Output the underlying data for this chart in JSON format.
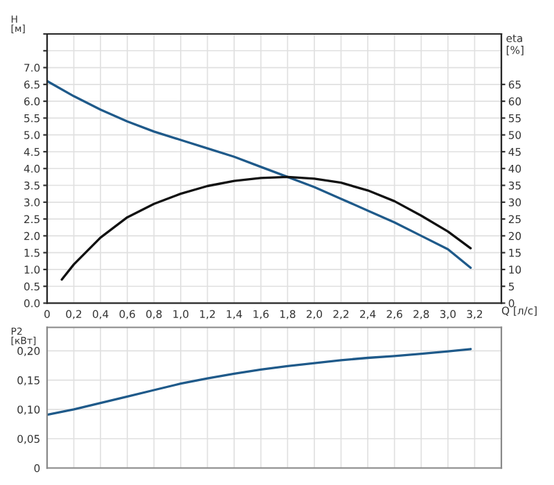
{
  "chart_data": [
    {
      "type": "line",
      "ylabel": "H\n[м]",
      "y2label": "eta\n[%]",
      "xlabel": "Q [л/с]",
      "grid": true,
      "legend": false,
      "xlim": [
        0,
        3.4
      ],
      "xticks": [
        {
          "value": 0,
          "label": "0"
        },
        {
          "value": 0.2,
          "label": "0,2"
        },
        {
          "value": 0.4,
          "label": "0,4"
        },
        {
          "value": 0.6,
          "label": "0,6"
        },
        {
          "value": 0.8,
          "label": "0,8"
        },
        {
          "value": 1.0,
          "label": "1,0"
        },
        {
          "value": 1.2,
          "label": "1,2"
        },
        {
          "value": 1.4,
          "label": "1,4"
        },
        {
          "value": 1.6,
          "label": "1,6"
        },
        {
          "value": 1.8,
          "label": "1,8"
        },
        {
          "value": 2.0,
          "label": "2,0"
        },
        {
          "value": 2.2,
          "label": "2,2"
        },
        {
          "value": 2.4,
          "label": "2,4"
        },
        {
          "value": 2.6,
          "label": "2,6"
        },
        {
          "value": 2.8,
          "label": "2,8"
        },
        {
          "value": 3.0,
          "label": "3,0"
        },
        {
          "value": 3.2,
          "label": "3,2"
        },
        {
          "value": 3.4,
          "label": null
        }
      ],
      "ylim": [
        0,
        8
      ],
      "yticks": [
        {
          "value": 0,
          "label": "0.0"
        },
        {
          "value": 0.5,
          "label": "0.5"
        },
        {
          "value": 1,
          "label": "1.0"
        },
        {
          "value": 1.5,
          "label": "1.5"
        },
        {
          "value": 2,
          "label": "2.0"
        },
        {
          "value": 2.5,
          "label": "2.5"
        },
        {
          "value": 3,
          "label": "3.0"
        },
        {
          "value": 3.5,
          "label": "3.5"
        },
        {
          "value": 4,
          "label": "4.0"
        },
        {
          "value": 4.5,
          "label": "4.5"
        },
        {
          "value": 5,
          "label": "5.0"
        },
        {
          "value": 5.5,
          "label": "5.5"
        },
        {
          "value": 6,
          "label": "6.0"
        },
        {
          "value": 6.5,
          "label": "6.5"
        },
        {
          "value": 7,
          "label": "7.0"
        },
        {
          "value": 7.5,
          "label": null
        },
        {
          "value": 8,
          "label": null
        }
      ],
      "y2lim": [
        0,
        80
      ],
      "y2ticks": [
        0,
        5,
        10,
        15,
        20,
        25,
        30,
        35,
        40,
        45,
        50,
        55,
        60,
        65
      ],
      "series": [
        {
          "color": "#1f5a8a",
          "x": [
            0,
            0.2,
            0.4,
            0.6,
            0.8,
            1.0,
            1.2,
            1.4,
            1.6,
            1.8,
            2.0,
            2.2,
            2.4,
            2.6,
            2.8,
            3.0,
            3.17
          ],
          "values": [
            6.6,
            6.15,
            5.75,
            5.4,
            5.1,
            4.85,
            4.6,
            4.35,
            4.05,
            3.75,
            3.45,
            3.1,
            2.75,
            2.4,
            2.0,
            1.6,
            1.05
          ]
        },
        {
          "color": "#111111",
          "axis": "y2",
          "x": [
            0.11,
            0.2,
            0.4,
            0.6,
            0.8,
            1.0,
            1.2,
            1.4,
            1.6,
            1.8,
            2.0,
            2.2,
            2.4,
            2.6,
            2.8,
            3.0,
            3.17
          ],
          "values": [
            7,
            11.5,
            19.5,
            25.5,
            29.5,
            32.5,
            34.8,
            36.3,
            37.2,
            37.5,
            37,
            35.8,
            33.5,
            30.3,
            26,
            21.3,
            16.3
          ]
        }
      ]
    },
    {
      "type": "line",
      "ylabel": "P2\n[кВт]",
      "grid": true,
      "legend": false,
      "tick_labels": "y",
      "xlim": [
        0,
        3.4
      ],
      "xticks": [
        0,
        0.2,
        0.4,
        0.6,
        0.8,
        1.0,
        1.2,
        1.4,
        1.6,
        1.8,
        2.0,
        2.2,
        2.4,
        2.6,
        2.8,
        3.0,
        3.2,
        3.4
      ],
      "ylim": [
        0,
        0.24
      ],
      "yticks": [
        {
          "value": 0,
          "label": "0"
        },
        {
          "value": 0.05,
          "label": "0,05"
        },
        {
          "value": 0.1,
          "label": "0,10"
        },
        {
          "value": 0.15,
          "label": "0,15"
        },
        {
          "value": 0.2,
          "label": "0,20"
        }
      ],
      "series": [
        {
          "color": "#1f5a8a",
          "x": [
            0,
            0.2,
            0.4,
            0.6,
            0.8,
            1.0,
            1.2,
            1.4,
            1.6,
            1.8,
            2.0,
            2.2,
            2.4,
            2.6,
            2.8,
            3.0,
            3.17
          ],
          "values": [
            0.091,
            0.1,
            0.111,
            0.122,
            0.133,
            0.144,
            0.153,
            0.161,
            0.168,
            0.174,
            0.179,
            0.184,
            0.188,
            0.191,
            0.195,
            0.199,
            0.203
          ]
        }
      ]
    }
  ]
}
